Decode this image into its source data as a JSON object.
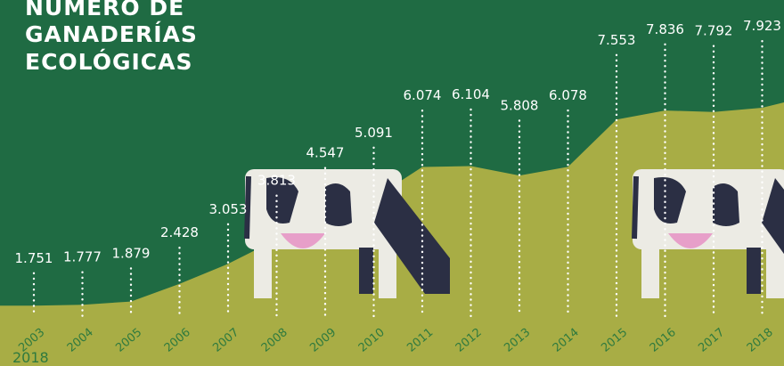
{
  "title_lines": [
    "NÚMERO DE",
    "GANADERÍAS",
    "ECOLÓGICAS"
  ],
  "footnote_year": "2018",
  "colors": {
    "background": "#1f6b43",
    "hill": "#a8ad45",
    "dots": "#ffffff",
    "year_text": "#2f7a3e",
    "cow_dark": "#2b2f44",
    "cow_light": "#ecebe4",
    "udder": "#e79fc9"
  },
  "chart_data": {
    "type": "area",
    "title": "NÚMERO DE GANADERÍAS ECOLÓGICAS",
    "categories": [
      "2003",
      "2004",
      "2005",
      "2006",
      "2007",
      "2008",
      "2009",
      "2010",
      "2011",
      "2012",
      "2013",
      "2014",
      "2015",
      "2016",
      "2017",
      "2018"
    ],
    "labels": [
      "1.751",
      "1.777",
      "1.879",
      "2.428",
      "3.053",
      "3.813",
      "4.547",
      "5.091",
      "6.074",
      "6.104",
      "5.808",
      "6.078",
      "7.553",
      "7.836",
      "7.792",
      "7.923"
    ],
    "values": [
      1751,
      1777,
      1879,
      2428,
      3053,
      3813,
      4547,
      5091,
      6074,
      6104,
      5808,
      6078,
      7553,
      7836,
      7792,
      7923
    ],
    "ylim": [
      0,
      8500
    ],
    "grid": false,
    "legend": "none"
  }
}
